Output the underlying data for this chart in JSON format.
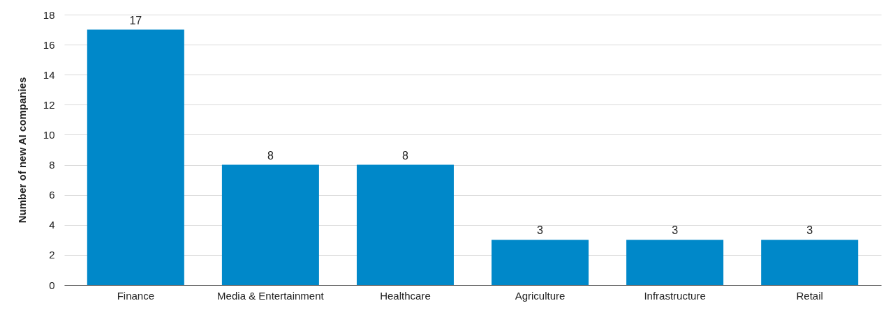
{
  "chart_data": {
    "type": "bar",
    "ylabel": "Number of new AI companies",
    "categories": [
      "Finance",
      "Media & Entertainment",
      "Healthcare",
      "Agriculture",
      "Infrastructure",
      "Retail"
    ],
    "values": [
      17,
      8,
      8,
      3,
      3,
      3
    ],
    "color": "#0088c9",
    "ylim": [
      0,
      18
    ],
    "yticks": [
      0,
      2,
      4,
      6,
      8,
      10,
      12,
      14,
      16,
      18
    ],
    "grid": "y",
    "data_labels": true
  }
}
